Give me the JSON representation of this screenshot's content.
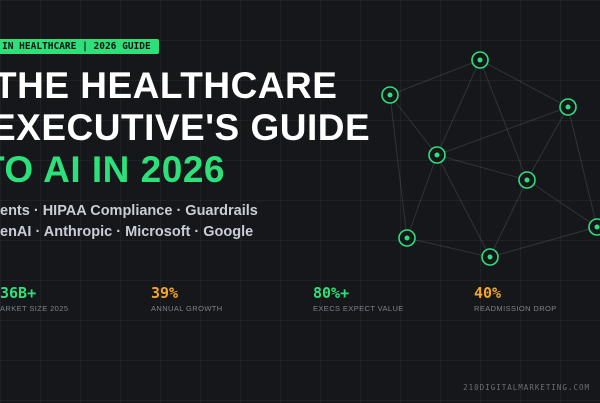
{
  "tag": "IN HEALTHCARE  |  2026 GUIDE",
  "title": [
    "THE HEALTHCARE",
    "EXECUTIVE'S GUIDE",
    "TO AI IN 2026"
  ],
  "topics": [
    "ents · HIPAA Compliance · Guardrails",
    "enAI · Anthropic · Microsoft · Google"
  ],
  "stats": [
    {
      "value": "36B+",
      "label": "ARKET SIZE 2025"
    },
    {
      "value": "39%",
      "label": "ANNUAL GROWTH"
    },
    {
      "value": "80%+",
      "label": "EXECS EXPECT VALUE"
    },
    {
      "value": "40%",
      "label": "READMISSION DROP"
    }
  ],
  "footer": "210DIGITALMARKETING.COM"
}
